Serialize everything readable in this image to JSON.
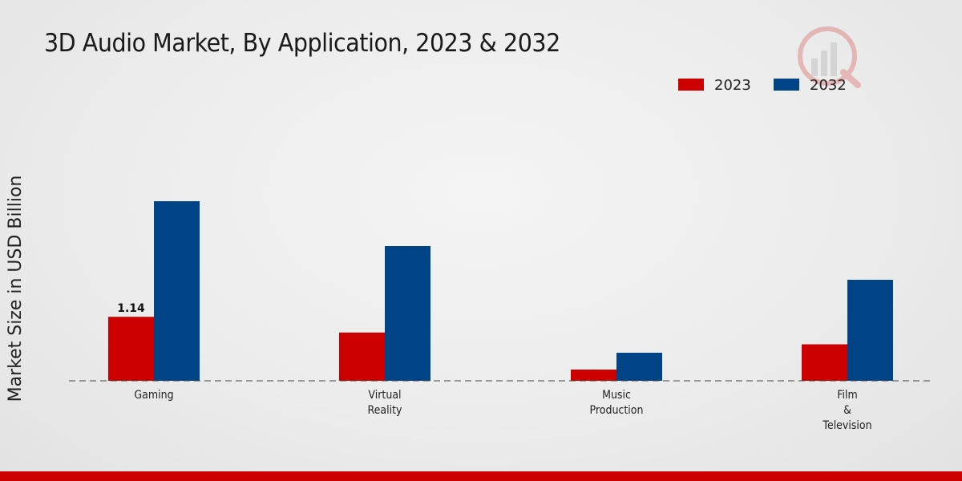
{
  "colors": {
    "series_2023": "#cc0000",
    "series_2032": "#004488",
    "bottom_bar": "#cc0000"
  },
  "watermark": {
    "icon": "logo-bar-chart-icon"
  },
  "chart_data": {
    "type": "bar",
    "title": "3D Audio Market, By Application, 2023 & 2032",
    "xlabel": "",
    "ylabel": "Market Size in USD Billion",
    "categories": [
      "Gaming",
      "Virtual\nReality",
      "Music\nProduction",
      "Film\n&\nTelevision"
    ],
    "series": [
      {
        "name": "2023",
        "color": "#cc0000",
        "values": [
          1.14,
          0.86,
          0.2,
          0.65
        ]
      },
      {
        "name": "2032",
        "color": "#004488",
        "values": [
          3.2,
          2.4,
          0.5,
          1.8
        ]
      }
    ],
    "data_labels": [
      {
        "series": 0,
        "index": 0,
        "text": "1.14"
      }
    ],
    "ylim": [
      0,
      4.0
    ],
    "grid": false,
    "legend_position": "top-right",
    "baseline": "dashed"
  }
}
